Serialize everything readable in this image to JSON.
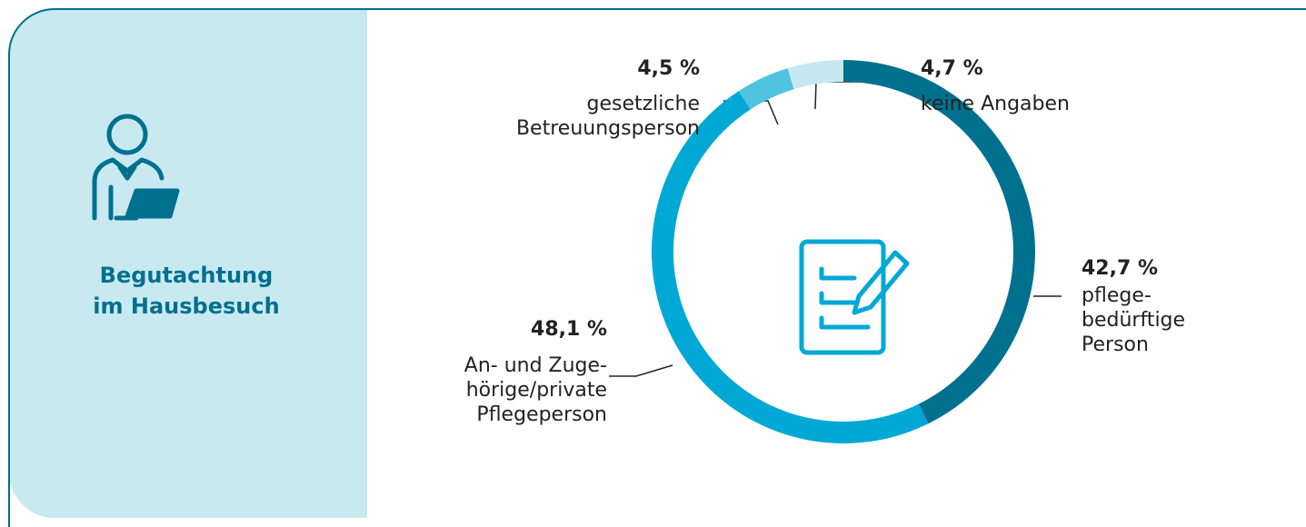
{
  "panel": {
    "title": "Begutachtung\nim Hausbesuch"
  },
  "chart_data": {
    "type": "pie",
    "donut": true,
    "categories": [
      "pflege-\nbedürftige\nPerson",
      "An- und Zuge-\nhörige/private\nPflegeperson",
      "gesetzliche\nBetreuungsperson",
      "keine Angaben"
    ],
    "values": [
      42.7,
      48.1,
      4.5,
      4.7
    ],
    "value_labels": [
      "42,7 %",
      "48,1 %",
      "4,5 %",
      "4,7 %"
    ],
    "colors": [
      "#00708f",
      "#00a8d6",
      "#4fc3e0",
      "#c5e8f1"
    ]
  }
}
